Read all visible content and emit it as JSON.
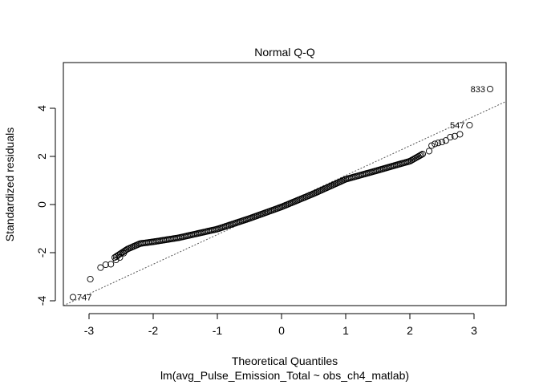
{
  "chart_data": {
    "type": "scatter",
    "title": "Normal Q-Q",
    "xlabel": "Theoretical Quantiles",
    "ylabel": "Standardized residuals",
    "subtitle": "lm(avg_Pulse_Emission_Total ~ obs_ch4_matlab)",
    "xlim": [
      -3.4,
      3.5
    ],
    "ylim": [
      -4.2,
      5.9
    ],
    "xticks": [
      -3,
      -2,
      -1,
      0,
      1,
      2,
      3
    ],
    "xtick_labels": [
      "-3",
      "-2",
      "-1",
      "0",
      "1",
      "2",
      "3"
    ],
    "yticks": [
      -4,
      -2,
      0,
      2,
      4
    ],
    "ytick_labels": [
      "-4",
      "-2",
      "0",
      "2",
      "4"
    ],
    "grid": false,
    "reference_line": {
      "style": "dotted",
      "intercept": -0.02,
      "slope": 1.23
    },
    "marker": "open-circle",
    "curve_knots": [
      [
        -2.6,
        -2.2
      ],
      [
        -2.4,
        -1.85
      ],
      [
        -2.2,
        -1.62
      ],
      [
        -2.0,
        -1.55
      ],
      [
        -1.6,
        -1.38
      ],
      [
        -1.0,
        -1.02
      ],
      [
        -0.5,
        -0.58
      ],
      [
        0.0,
        -0.1
      ],
      [
        0.5,
        0.45
      ],
      [
        1.0,
        1.05
      ],
      [
        1.5,
        1.42
      ],
      [
        1.8,
        1.65
      ],
      [
        2.0,
        1.8
      ],
      [
        2.2,
        2.1
      ]
    ],
    "points": [
      {
        "x": -3.25,
        "y": -3.85
      },
      {
        "x": -2.98,
        "y": -3.1
      },
      {
        "x": -2.82,
        "y": -2.62
      },
      {
        "x": -2.74,
        "y": -2.5
      },
      {
        "x": -2.66,
        "y": -2.48
      },
      {
        "x": -2.58,
        "y": -2.3
      },
      {
        "x": -2.52,
        "y": -2.2
      },
      {
        "x": -2.46,
        "y": -2.02
      },
      {
        "x": 2.3,
        "y": 2.22
      },
      {
        "x": 2.34,
        "y": 2.45
      },
      {
        "x": 2.39,
        "y": 2.52
      },
      {
        "x": 2.44,
        "y": 2.56
      },
      {
        "x": 2.5,
        "y": 2.6
      },
      {
        "x": 2.56,
        "y": 2.66
      },
      {
        "x": 2.63,
        "y": 2.8
      },
      {
        "x": 2.7,
        "y": 2.84
      },
      {
        "x": 2.78,
        "y": 2.92
      },
      {
        "x": 2.93,
        "y": 3.3
      },
      {
        "x": 3.25,
        "y": 4.8
      }
    ],
    "labeled_points": [
      {
        "label": "833",
        "x": 3.25,
        "y": 4.8
      },
      {
        "label": "547",
        "x": 2.93,
        "y": 3.3
      },
      {
        "label": "747",
        "x": -3.25,
        "y": -3.85
      }
    ]
  }
}
